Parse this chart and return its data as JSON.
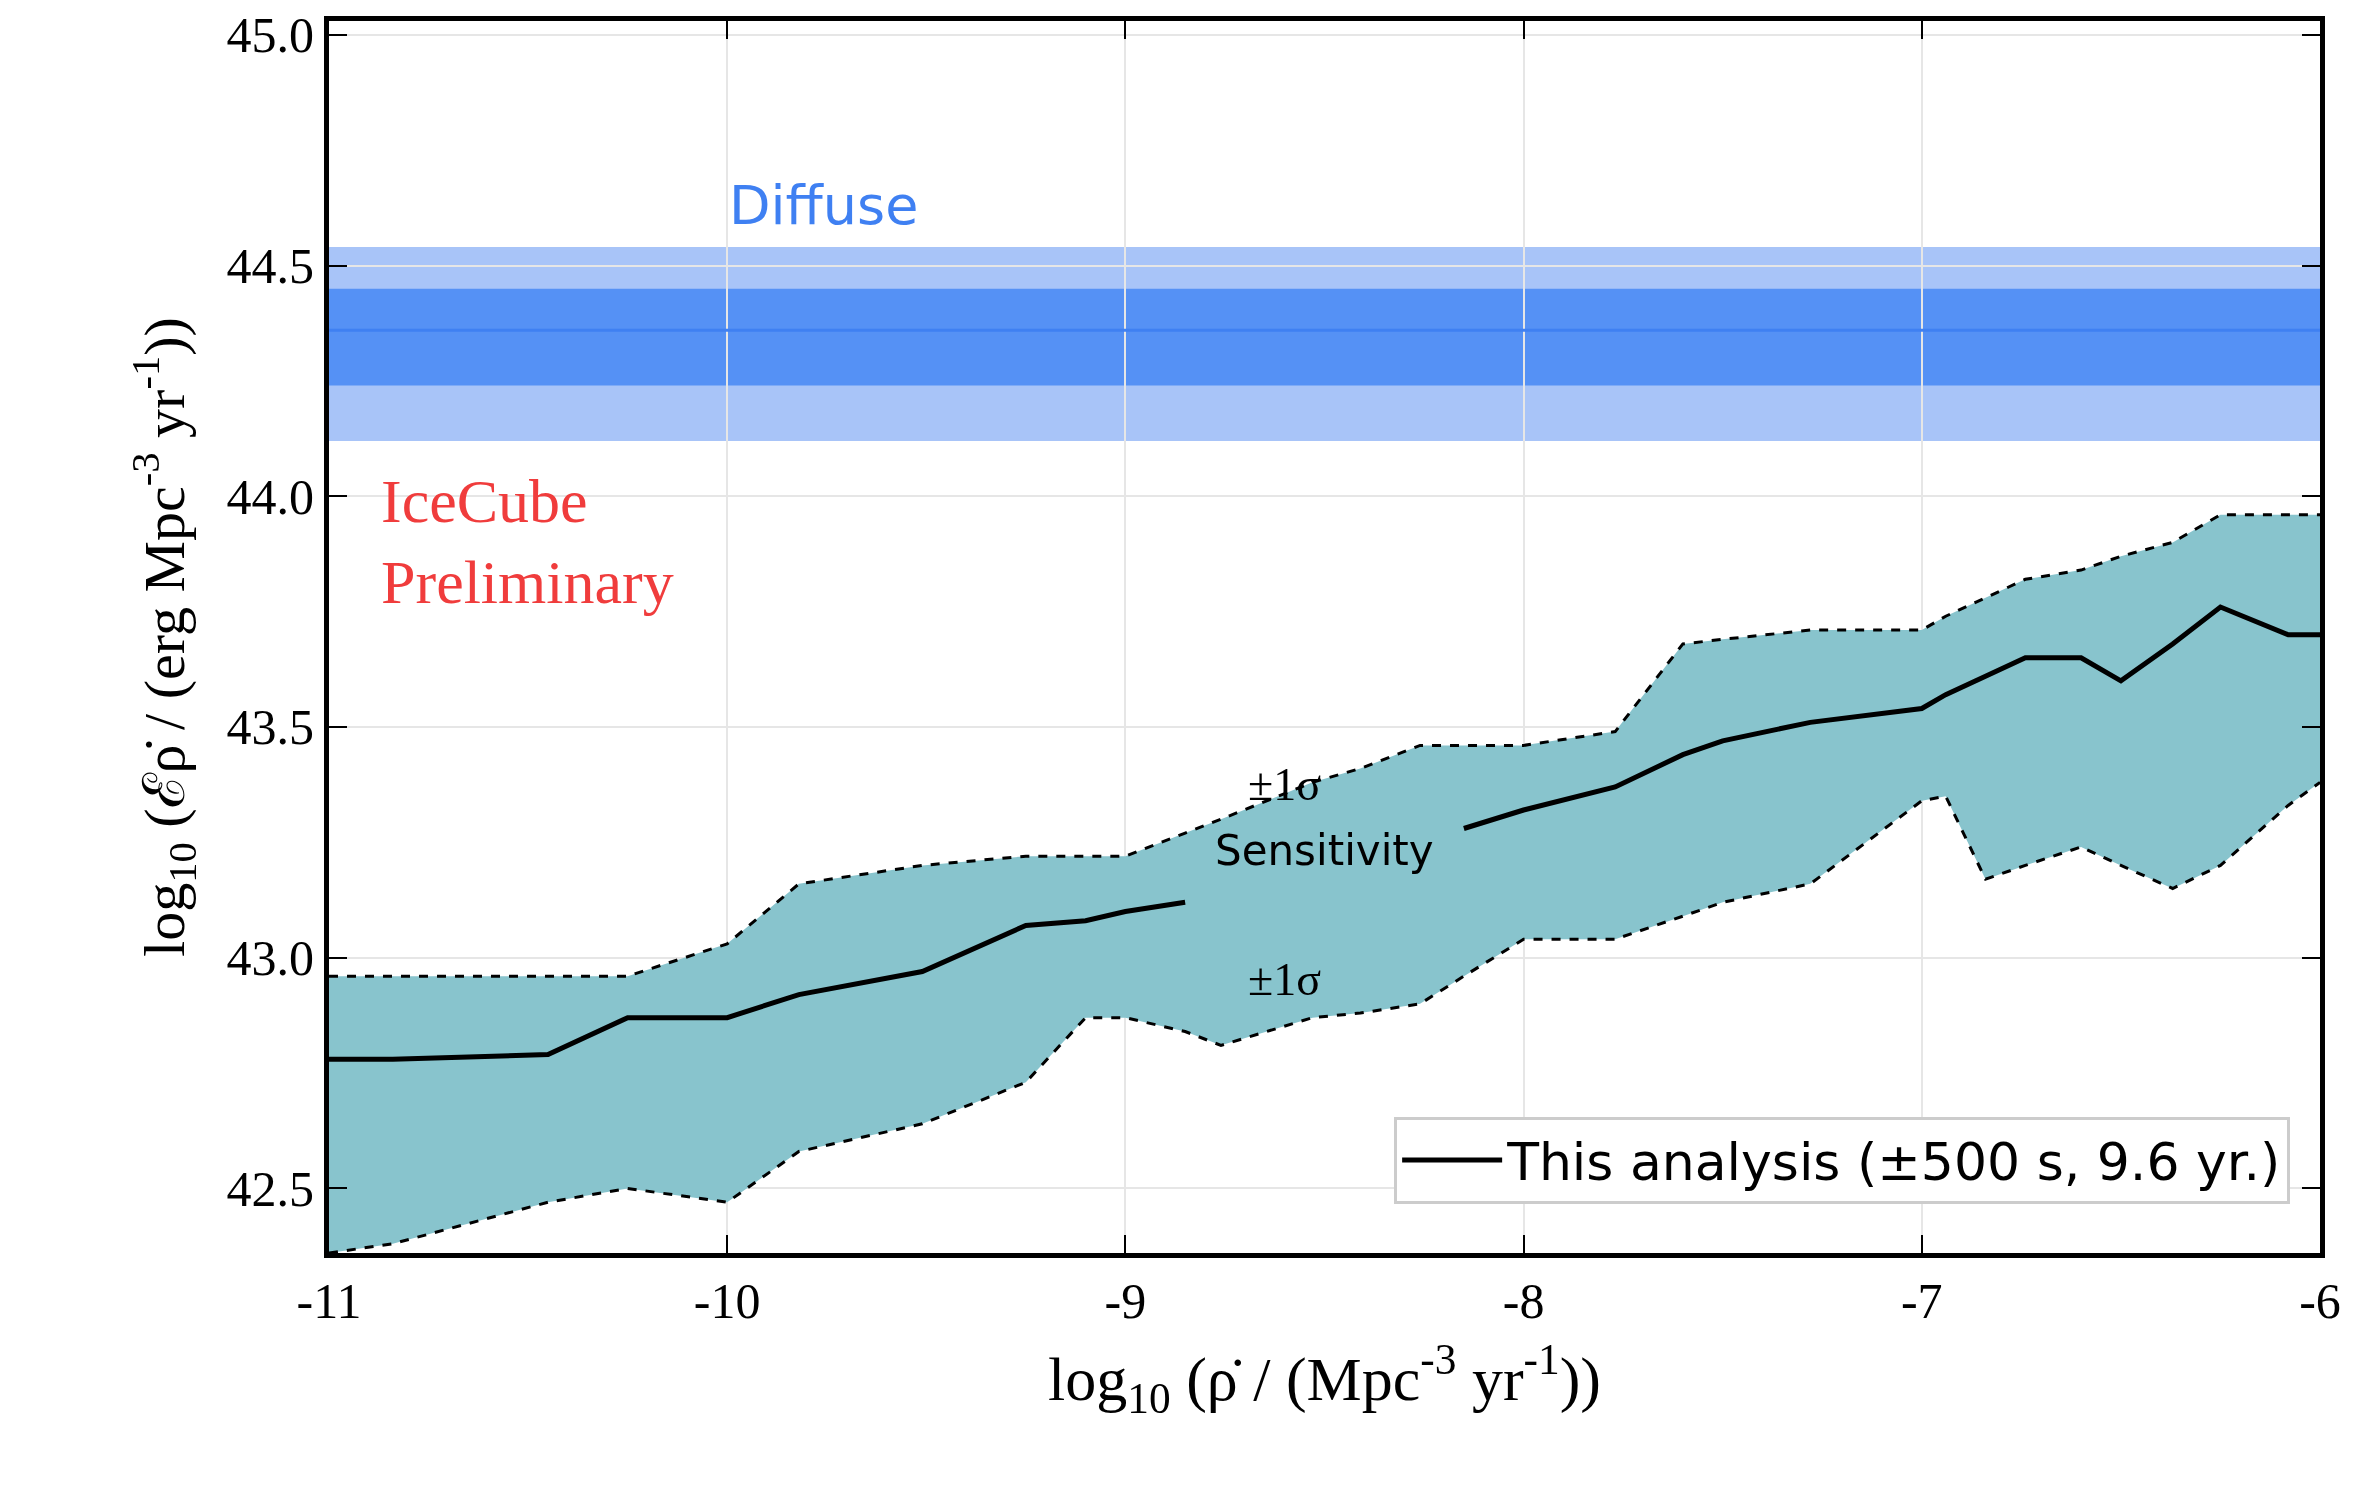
{
  "chart_data": {
    "type": "line",
    "xlabel": "log$_{10}$ (ρ̇ / (Mpc$^{-3}$ yr$^{-1}$))",
    "ylabel": "log$_{10}$ (ℰρ̇ / (erg Mpc$^{-3}$ yr$^{-1}$))",
    "x": [
      -11,
      -10.84,
      -10.45,
      -10.25,
      -10,
      -9.82,
      -9.51,
      -9.25,
      -9.1,
      -9.0,
      -8.85,
      -8.76,
      -8.53,
      -8.41,
      -8.26,
      -8.15,
      -8.0,
      -7.77,
      -7.6,
      -7.5,
      -7.28,
      -7.0,
      -6.94,
      -6.84,
      -6.74,
      -6.6,
      -6.5,
      -6.37,
      -6.25,
      -6.08,
      -6.0
    ],
    "series": [
      {
        "name": "This analysis (±500 s, 9.6 yr.)",
        "color": "#000000",
        "line_style": "solid",
        "values": [
          42.78,
          42.78,
          42.79,
          42.87,
          42.87,
          42.92,
          42.97,
          43.07,
          43.08,
          43.1,
          43.12,
          null,
          null,
          null,
          null,
          43.28,
          43.32,
          43.37,
          43.44,
          43.47,
          43.51,
          43.54,
          43.57,
          43.61,
          43.65,
          43.65,
          43.6,
          43.68,
          43.76,
          43.7,
          43.7
        ],
        "upper": [
          42.96,
          42.96,
          42.96,
          42.96,
          43.03,
          43.16,
          43.2,
          43.22,
          43.22,
          43.22,
          43.27,
          43.3,
          43.38,
          43.41,
          43.46,
          43.46,
          43.46,
          43.49,
          43.68,
          43.69,
          43.71,
          43.71,
          43.74,
          43.78,
          43.82,
          43.84,
          43.87,
          43.9,
          43.96,
          43.96,
          43.96
        ],
        "lower": [
          42.36,
          42.38,
          42.47,
          42.5,
          42.47,
          42.58,
          42.64,
          42.73,
          42.87,
          42.87,
          42.84,
          42.81,
          42.87,
          42.88,
          42.9,
          42.96,
          43.04,
          43.04,
          43.09,
          43.12,
          43.16,
          43.34,
          43.35,
          43.17,
          43.2,
          43.24,
          43.2,
          43.15,
          43.2,
          43.33,
          43.38
        ]
      },
      {
        "color": "#000000",
        "line_style": "dashed",
        "values": [
          42.96,
          42.96,
          42.96,
          42.96,
          43.03,
          43.16,
          43.2,
          43.22,
          43.22,
          43.22,
          43.27,
          43.3,
          43.38,
          43.41,
          43.46,
          43.46,
          43.46,
          43.49,
          43.68,
          43.69,
          43.71,
          43.71,
          43.74,
          43.78,
          43.82,
          43.84,
          43.87,
          43.9,
          43.96,
          43.96,
          43.96
        ]
      },
      {
        "color": "#000000",
        "line_style": "dashed",
        "values": [
          42.36,
          42.38,
          42.47,
          42.5,
          42.47,
          42.58,
          42.64,
          42.73,
          42.87,
          42.87,
          42.84,
          42.81,
          42.87,
          42.88,
          42.9,
          42.96,
          43.04,
          43.04,
          43.09,
          43.12,
          43.16,
          43.34,
          43.35,
          43.17,
          43.2,
          43.24,
          43.2,
          43.15,
          43.2,
          43.33,
          43.38
        ]
      }
    ],
    "xlim": [
      -11,
      -6
    ],
    "xticks": [
      -11,
      -10,
      -9,
      -8,
      -7,
      -6
    ],
    "ylim": [
      42.36,
      45.03
    ],
    "yticks": [
      {
        "value": 42.5,
        "label": "42.5"
      },
      {
        "value": 43,
        "label": "43.0"
      },
      {
        "value": 43.5,
        "label": "43.5"
      },
      {
        "value": 44,
        "label": "44.0"
      },
      {
        "value": 44.5,
        "label": "44.5"
      },
      {
        "value": 45,
        "label": "45.0"
      }
    ],
    "bands": [
      {
        "axis": "y",
        "from": 44.12,
        "to": 44.54,
        "color": "#a8c4f8"
      },
      {
        "axis": "y",
        "from": 44.24,
        "to": 44.45,
        "color": "#5591f5"
      }
    ],
    "ref_lines": [
      {
        "axis": "y",
        "value": 44.36,
        "label": "Diffuse",
        "color": "#3f80f2"
      }
    ],
    "annotations": [
      "±1σ",
      "Sensitivity",
      "±1σ",
      "IceCube\nPreliminary"
    ],
    "grid": true,
    "legend": "bottom right",
    "marker": "none"
  }
}
